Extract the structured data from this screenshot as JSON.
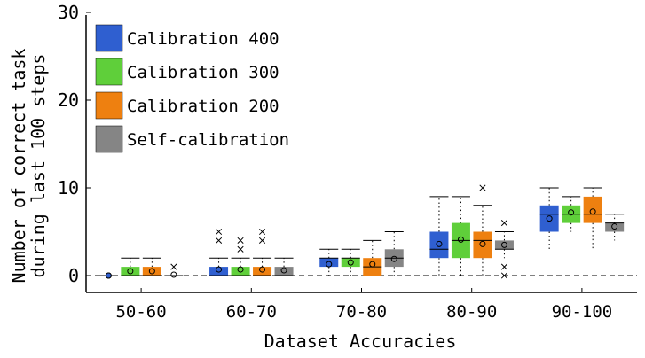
{
  "chart_data": {
    "type": "box",
    "title": "",
    "xlabel": "Dataset Accuracies",
    "ylabel_lines": [
      "Number of correct task",
      "during last 100 steps"
    ],
    "ylim": [
      -2,
      30
    ],
    "yticks": [
      0,
      10,
      20,
      30
    ],
    "ytick_labels": [
      "0",
      "10",
      "20",
      "30"
    ],
    "grid": false,
    "legend_position": "top-left",
    "reference_line": 0,
    "categories": [
      "50-60",
      "60-70",
      "70-80",
      "80-90",
      "90-100"
    ],
    "series": [
      {
        "name": "Calibration 400",
        "color": "#2f5fd0",
        "boxes": [
          {
            "whislo": 0,
            "q1": 0,
            "med": 0,
            "q3": 0,
            "whishi": 0,
            "mean": 0.0,
            "fliers": []
          },
          {
            "whislo": 0,
            "q1": 0,
            "med": 0,
            "q3": 1,
            "whishi": 2,
            "mean": 0.7,
            "fliers": [
              4,
              5
            ]
          },
          {
            "whislo": 0,
            "q1": 1,
            "med": 2,
            "q3": 2,
            "whishi": 3,
            "mean": 1.3,
            "fliers": []
          },
          {
            "whislo": 0,
            "q1": 2,
            "med": 3,
            "q3": 5,
            "whishi": 9,
            "mean": 3.6,
            "fliers": []
          },
          {
            "whislo": 3,
            "q1": 5,
            "med": 7,
            "q3": 8,
            "whishi": 10,
            "mean": 6.5,
            "fliers": []
          }
        ]
      },
      {
        "name": "Calibration 300",
        "color": "#5fcf3a",
        "boxes": [
          {
            "whislo": 0,
            "q1": 0,
            "med": 0,
            "q3": 1,
            "whishi": 2,
            "mean": 0.5,
            "fliers": []
          },
          {
            "whislo": 0,
            "q1": 0,
            "med": 0,
            "q3": 1,
            "whishi": 2,
            "mean": 0.7,
            "fliers": [
              3,
              4
            ]
          },
          {
            "whislo": 0,
            "q1": 1,
            "med": 2,
            "q3": 2,
            "whishi": 3,
            "mean": 1.5,
            "fliers": []
          },
          {
            "whislo": 0,
            "q1": 2,
            "med": 4,
            "q3": 6,
            "whishi": 9,
            "mean": 4.1,
            "fliers": []
          },
          {
            "whislo": 5,
            "q1": 6,
            "med": 7,
            "q3": 8,
            "whishi": 9,
            "mean": 7.2,
            "fliers": []
          }
        ]
      },
      {
        "name": "Calibration 200",
        "color": "#ee8010",
        "boxes": [
          {
            "whislo": 0,
            "q1": 0,
            "med": 0,
            "q3": 1,
            "whishi": 2,
            "mean": 0.5,
            "fliers": []
          },
          {
            "whislo": 0,
            "q1": 0,
            "med": 0,
            "q3": 1,
            "whishi": 2,
            "mean": 0.7,
            "fliers": [
              4,
              5
            ]
          },
          {
            "whislo": 0,
            "q1": 0,
            "med": 1,
            "q3": 2,
            "whishi": 4,
            "mean": 1.3,
            "fliers": []
          },
          {
            "whislo": 0,
            "q1": 2,
            "med": 4,
            "q3": 5,
            "whishi": 8,
            "mean": 3.6,
            "fliers": [
              10
            ]
          },
          {
            "whislo": 3,
            "q1": 6,
            "med": 7,
            "q3": 9,
            "whishi": 10,
            "mean": 7.3,
            "fliers": []
          }
        ]
      },
      {
        "name": "Self-calibration",
        "color": "#858585",
        "boxes": [
          {
            "whislo": 0,
            "q1": 0,
            "med": 0,
            "q3": 0,
            "whishi": 0,
            "mean": 0.1,
            "fliers": [
              1
            ]
          },
          {
            "whislo": 0,
            "q1": 0,
            "med": 0,
            "q3": 1,
            "whishi": 2,
            "mean": 0.6,
            "fliers": []
          },
          {
            "whislo": 0,
            "q1": 1,
            "med": 2,
            "q3": 3,
            "whishi": 5,
            "mean": 1.9,
            "fliers": []
          },
          {
            "whislo": 2,
            "q1": 3,
            "med": 3,
            "q3": 4,
            "whishi": 5,
            "mean": 3.5,
            "fliers": [
              0,
              1,
              6
            ]
          },
          {
            "whislo": 4,
            "q1": 5,
            "med": 6,
            "q3": 6,
            "whishi": 7,
            "mean": 5.6,
            "fliers": []
          }
        ]
      }
    ]
  }
}
